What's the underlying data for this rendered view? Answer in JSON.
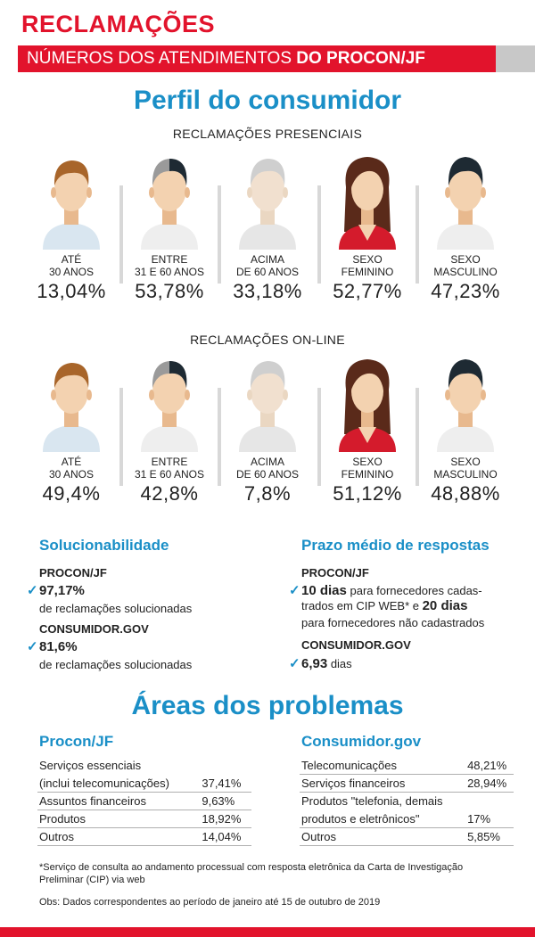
{
  "header": {
    "title": "RECLAMAÇÕES",
    "subtitle_light": "NÚMEROS DOS ATENDIMENTOS ",
    "subtitle_bold": "DO PROCON/JF"
  },
  "perfil": {
    "title": "Perfil do consumidor",
    "presenciais": {
      "label": "RECLAMAÇÕES PRESENCIAIS",
      "items": [
        {
          "label": "ATÉ\n30 ANOS",
          "value": "13,04%"
        },
        {
          "label": "ENTRE\n31 E 60 ANOS",
          "value": "53,78%"
        },
        {
          "label": "ACIMA\nDE 60 ANOS",
          "value": "33,18%"
        },
        {
          "label": "SEXO\nFEMININO",
          "value": "52,77%"
        },
        {
          "label": "SEXO\nMASCULINO",
          "value": "47,23%"
        }
      ]
    },
    "online": {
      "label": "RECLAMAÇÕES ON-LINE",
      "items": [
        {
          "label": "ATÉ\n30 ANOS",
          "value": "49,4%"
        },
        {
          "label": "ENTRE\n31 E 60 ANOS",
          "value": "42,8%"
        },
        {
          "label": "ACIMA\nDE 60 ANOS",
          "value": "7,8%"
        },
        {
          "label": "SEXO\nFEMININO",
          "value": "51,12%"
        },
        {
          "label": "SEXO\nMASCULINO",
          "value": "48,88%"
        }
      ]
    }
  },
  "solucionabilidade": {
    "title": "Solucionabilidade",
    "procon_label": "PROCON/JF",
    "procon_value": "97,17%",
    "procon_desc": "de reclamações solucionadas",
    "consumidor_label": "CONSUMIDOR.GOV",
    "consumidor_value": "81,6%",
    "consumidor_desc": "de reclamações solucionadas"
  },
  "prazo": {
    "title": "Prazo médio de respostas",
    "procon_label": "PROCON/JF",
    "procon_value1": "10 dias",
    "procon_text1": " para fornecedores cadas-",
    "procon_text2": "trados em CIP WEB* e ",
    "procon_value2": "20 dias",
    "procon_text3": "para fornecedores não cadastrados",
    "consumidor_label": "CONSUMIDOR.GOV",
    "consumidor_value": "6,93",
    "consumidor_unit": " dias"
  },
  "areas": {
    "title": "Áreas dos problemas",
    "procon": {
      "title": "Procon/JF",
      "rows": [
        {
          "name": "Serviços essenciais",
          "value": ""
        },
        {
          "name": "(inclui telecomunicações)",
          "value": "37,41%"
        },
        {
          "name": "Assuntos financeiros",
          "value": "9,63%"
        },
        {
          "name": "Produtos",
          "value": "18,92%"
        },
        {
          "name": "Outros",
          "value": "14,04%"
        }
      ]
    },
    "consumidor": {
      "title": "Consumidor.gov",
      "rows": [
        {
          "name": "Telecomunicações",
          "value": "48,21%"
        },
        {
          "name": "Serviços financeiros",
          "value": "28,94%"
        },
        {
          "name": "Produtos \"telefonia, demais",
          "value": ""
        },
        {
          "name": "produtos e eletrônicos\"",
          "value": "17%"
        },
        {
          "name": "Outros",
          "value": "5,85%"
        }
      ]
    }
  },
  "footnotes": {
    "note1": "*Serviço de consulta ao andamento processual com resposta eletrônica da Carta de Investigação Preliminar (CIP) via web",
    "note2": "Obs: Dados correspondentes ao período de janeiro até 15 de outubro de 2019"
  },
  "colors": {
    "red": "#e2132c",
    "blue": "#1a8fc7",
    "gray": "#d8d8d8"
  }
}
